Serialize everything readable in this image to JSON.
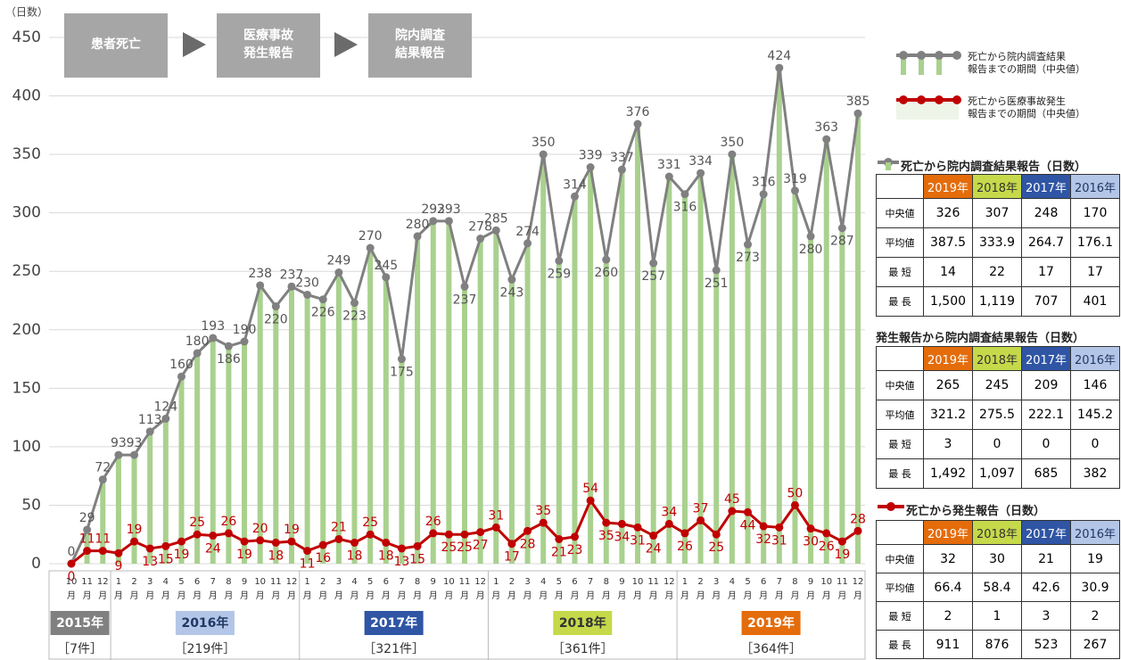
{
  "chart_data": {
    "type": "line",
    "y_label": "（日数）",
    "categories": [
      "10",
      "11",
      "12",
      "1",
      "2",
      "3",
      "4",
      "5",
      "6",
      "7",
      "8",
      "9",
      "10",
      "11",
      "12",
      "1",
      "2",
      "3",
      "4",
      "5",
      "6",
      "7",
      "8",
      "9",
      "10",
      "11",
      "12",
      "1",
      "2",
      "3",
      "4",
      "5",
      "6",
      "7",
      "8",
      "9",
      "10",
      "11",
      "12",
      "1",
      "2",
      "3",
      "4",
      "5",
      "6",
      "7",
      "8",
      "9",
      "10",
      "11",
      "12"
    ],
    "x_unit": "月",
    "ylim": [
      0,
      450
    ],
    "yticks": [
      0,
      50,
      100,
      150,
      200,
      250,
      300,
      350,
      400,
      450
    ],
    "grid": true,
    "series": [
      {
        "name": "死亡から院内調査結果\n報告までの期間（中央値）",
        "color": "#808080",
        "bar_color": "#a9d18e",
        "values": [
          0,
          29,
          72,
          93,
          93,
          113,
          124,
          160,
          180,
          193,
          186,
          190,
          238,
          220,
          237,
          230,
          226,
          249,
          223,
          270,
          245,
          175,
          280,
          293,
          293,
          237,
          278,
          285,
          243,
          274,
          350,
          259,
          314,
          339,
          260,
          337,
          376,
          257,
          331,
          316,
          334,
          251,
          350,
          273,
          316,
          424,
          319,
          280,
          363,
          287,
          385
        ]
      },
      {
        "name": "死亡から医療事故発生\n報告までの期間（中央値）",
        "color": "#c00000",
        "values": [
          0,
          11,
          11,
          9,
          19,
          13,
          15,
          19,
          25,
          24,
          26,
          19,
          20,
          18,
          19,
          11,
          16,
          21,
          18,
          25,
          18,
          13,
          15,
          26,
          25,
          25,
          27,
          31,
          17,
          28,
          35,
          21,
          23,
          54,
          35,
          34,
          31,
          24,
          34,
          26,
          37,
          25,
          45,
          44,
          32,
          31,
          50,
          30,
          26,
          19,
          28
        ]
      }
    ],
    "years": [
      {
        "label": "2015年",
        "count": "［7件］",
        "color": "#808080",
        "text_color": "#ffffff"
      },
      {
        "label": "2016年",
        "count": "［219件］",
        "color": "#b4c6e7",
        "text_color": "#1f3864"
      },
      {
        "label": "2017年",
        "count": "［321件］",
        "color": "#2f55a4",
        "text_color": "#ffffff"
      },
      {
        "label": "2018年",
        "count": "［361件］",
        "color": "#c5d94a",
        "text_color": "#333333"
      },
      {
        "label": "2019年",
        "count": "［364件］",
        "color": "#e46c0a",
        "text_color": "#ffffff"
      }
    ]
  },
  "flow": [
    "患者死亡",
    "医療事故\n発生報告",
    "院内調査\n結果報告"
  ],
  "tables": [
    {
      "title": "死亡から院内調査結果報告（日数）",
      "columns": [
        "2019年",
        "2018年",
        "2017年",
        "2016年"
      ],
      "rows": [
        {
          "label": "中央値",
          "values": [
            "326",
            "307",
            "248",
            "170"
          ]
        },
        {
          "label": "平均値",
          "values": [
            "387.5",
            "333.9",
            "264.7",
            "176.1"
          ]
        },
        {
          "label": "最 短",
          "values": [
            "14",
            "22",
            "17",
            "17"
          ]
        },
        {
          "label": "最 長",
          "values": [
            "1,500",
            "1,119",
            "707",
            "401"
          ]
        }
      ]
    },
    {
      "title": "発生報告から院内調査結果報告（日数）",
      "columns": [
        "2019年",
        "2018年",
        "2017年",
        "2016年"
      ],
      "rows": [
        {
          "label": "中央値",
          "values": [
            "265",
            "245",
            "209",
            "146"
          ]
        },
        {
          "label": "平均値",
          "values": [
            "321.2",
            "275.5",
            "222.1",
            "145.2"
          ]
        },
        {
          "label": "最 短",
          "values": [
            "3",
            "0",
            "0",
            "0"
          ]
        },
        {
          "label": "最 長",
          "values": [
            "1,492",
            "1,097",
            "685",
            "382"
          ]
        }
      ]
    },
    {
      "title": "死亡から発生報告（日数）",
      "columns": [
        "2019年",
        "2018年",
        "2017年",
        "2016年"
      ],
      "rows": [
        {
          "label": "中央値",
          "values": [
            "32",
            "30",
            "21",
            "19"
          ]
        },
        {
          "label": "平均値",
          "values": [
            "66.4",
            "58.4",
            "42.6",
            "30.9"
          ]
        },
        {
          "label": "最 短",
          "values": [
            "2",
            "1",
            "3",
            "2"
          ]
        },
        {
          "label": "最 長",
          "values": [
            "911",
            "876",
            "523",
            "267"
          ]
        }
      ]
    }
  ]
}
